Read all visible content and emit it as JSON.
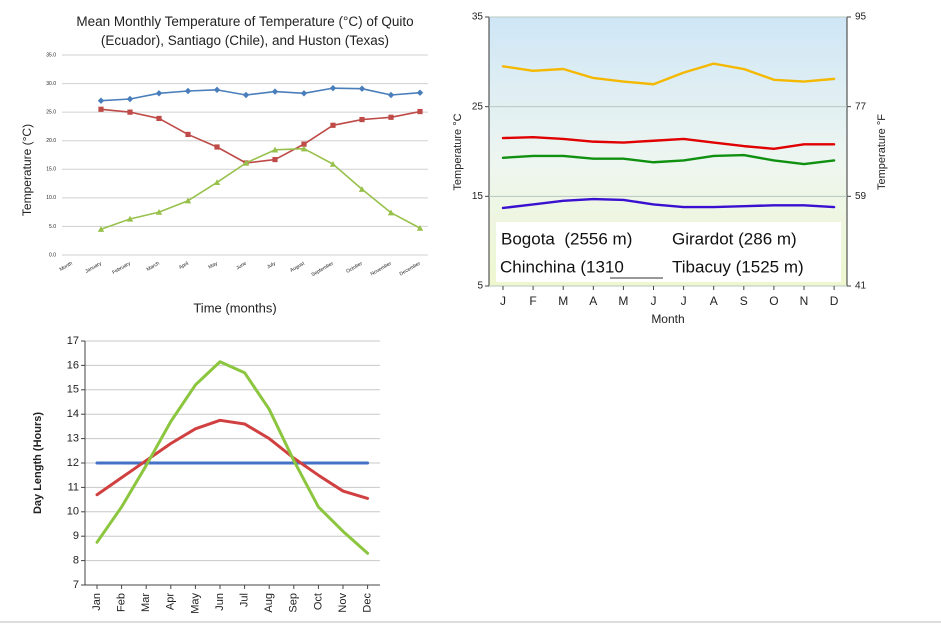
{
  "chart_data": [
    {
      "type": "line",
      "title": "Mean Monthly Temperature of Temperature (°C) of Quito (Ecuador), Santiago (Chile), and Huston (Texas)",
      "y_label": "Temperature (°C)",
      "x_label": "Time (months)",
      "categories": [
        "Month",
        "January",
        "February",
        "March",
        "April",
        "May",
        "June",
        "July",
        "August",
        "September",
        "October",
        "November",
        "December"
      ],
      "series": [
        {
          "color": "#4a7ebb",
          "marker": "diamond",
          "values": [
            null,
            27.0,
            27.3,
            28.3,
            28.7,
            28.9,
            28.0,
            28.6,
            28.3,
            29.2,
            29.1,
            28.0,
            28.4
          ]
        },
        {
          "color": "#be4b48",
          "marker": "square",
          "values": [
            null,
            25.5,
            25.0,
            23.9,
            21.1,
            18.9,
            16.1,
            16.7,
            19.4,
            22.7,
            23.7,
            24.1,
            25.1
          ]
        },
        {
          "color": "#98c14c",
          "marker": "triangle",
          "values": [
            null,
            4.5,
            6.3,
            7.5,
            9.5,
            12.7,
            16.1,
            18.4,
            18.6,
            15.9,
            11.5,
            7.4,
            4.7
          ]
        }
      ],
      "ylim": [
        0,
        35
      ],
      "yticks": [
        {
          "value": 0,
          "label": "0.0"
        },
        {
          "value": 5,
          "label": "5.0"
        },
        {
          "value": 10,
          "label": "10.0"
        },
        {
          "value": 15,
          "label": "15.0"
        },
        {
          "value": 20,
          "label": "20.0"
        },
        {
          "value": 25,
          "label": "25.0"
        },
        {
          "value": 30,
          "label": "30.0"
        },
        {
          "value": 35,
          "label": "35.0"
        }
      ],
      "grid": true
    },
    {
      "type": "line",
      "y_label": "Temperature °C",
      "y2_label": "Temperature °F",
      "x_label": "Month",
      "categories": [
        "J",
        "F",
        "M",
        "A",
        "M",
        "J",
        "J",
        "A",
        "S",
        "O",
        "N",
        "D"
      ],
      "series": [
        {
          "color": "#f5b800",
          "values": [
            29.5,
            29.0,
            29.2,
            28.2,
            27.8,
            27.5,
            28.8,
            29.8,
            29.2,
            28.0,
            27.8,
            28.1
          ]
        },
        {
          "color": "#e00000",
          "values": [
            21.5,
            21.6,
            21.4,
            21.1,
            21.0,
            21.2,
            21.4,
            21.0,
            20.6,
            20.3,
            20.8,
            20.8
          ]
        },
        {
          "color": "#109010",
          "values": [
            19.3,
            19.5,
            19.5,
            19.2,
            19.2,
            18.8,
            19.0,
            19.5,
            19.6,
            19.0,
            18.6,
            19.0
          ]
        },
        {
          "color": "#3a10d0",
          "values": [
            13.7,
            14.1,
            14.5,
            14.7,
            14.6,
            14.1,
            13.8,
            13.8,
            13.9,
            14.0,
            14.0,
            13.8
          ]
        }
      ],
      "annotations": [
        "Bogota  (2556 m)",
        "Girardot (286 m)",
        "Chinchina (1310",
        "Tibacuy (1525 m)"
      ],
      "ylim": [
        5,
        35
      ],
      "yticks": [
        5,
        15,
        25,
        35
      ],
      "y2lim": [
        41,
        95
      ],
      "y2ticks": [
        41,
        59,
        77,
        95
      ],
      "grid": true
    },
    {
      "type": "line",
      "y_label": "Day Length (Hours)",
      "categories": [
        "Jan",
        "Feb",
        "Mar",
        "Apr",
        "May",
        "Jun",
        "Jul",
        "Aug",
        "Sep",
        "Oct",
        "Nov",
        "Dec"
      ],
      "series": [
        {
          "color": "#4472c4",
          "values": [
            12,
            12,
            12,
            12,
            12,
            12,
            12,
            12,
            12,
            12,
            12,
            12
          ]
        },
        {
          "color": "#d04040",
          "values": [
            10.7,
            11.4,
            12.1,
            12.8,
            13.4,
            13.75,
            13.6,
            13.0,
            12.2,
            11.5,
            10.85,
            10.55
          ]
        },
        {
          "color": "#8cc63f",
          "values": [
            8.75,
            10.2,
            11.9,
            13.7,
            15.2,
            16.15,
            15.7,
            14.2,
            12.1,
            10.2,
            9.2,
            8.3
          ]
        }
      ],
      "ylim": [
        7,
        17
      ],
      "yticks": [
        7,
        8,
        9,
        10,
        11,
        12,
        13,
        14,
        15,
        16,
        17
      ],
      "grid": true
    }
  ]
}
